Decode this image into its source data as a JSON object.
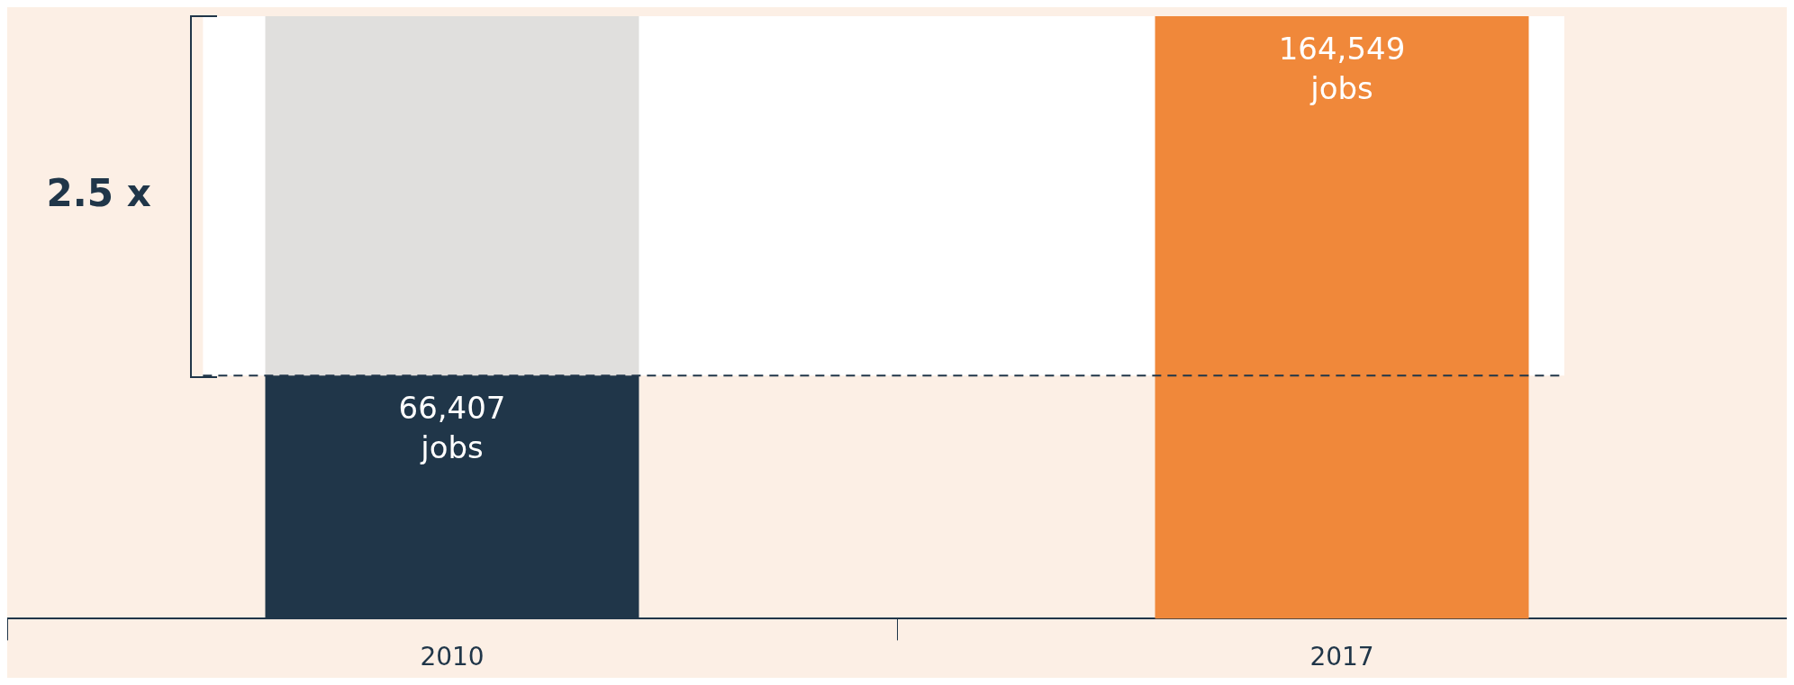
{
  "chart_data": {
    "type": "bar",
    "categories": [
      "2010",
      "2017"
    ],
    "stacked": true,
    "series": [
      {
        "colors": [
          "#203649",
          "#f0883a"
        ],
        "values": [
          66407,
          164549
        ],
        "value_labels": [
          "66,407 jobs",
          "164,549 jobs"
        ]
      },
      {
        "color": "#e0dfdd",
        "values": [
          98142,
          null
        ]
      }
    ],
    "ylim": [
      0,
      164549
    ],
    "tick_labels": "x",
    "grid": false,
    "legend": false,
    "bands": [
      {
        "axis": "y",
        "from": 66407,
        "to": 164549,
        "color": "#ffffff"
      }
    ],
    "ref_lines": [
      {
        "axis": "y",
        "value": 66407,
        "color": "#203649",
        "line_style": "dashed"
      }
    ],
    "annotations": [
      "2.5 x"
    ]
  }
}
